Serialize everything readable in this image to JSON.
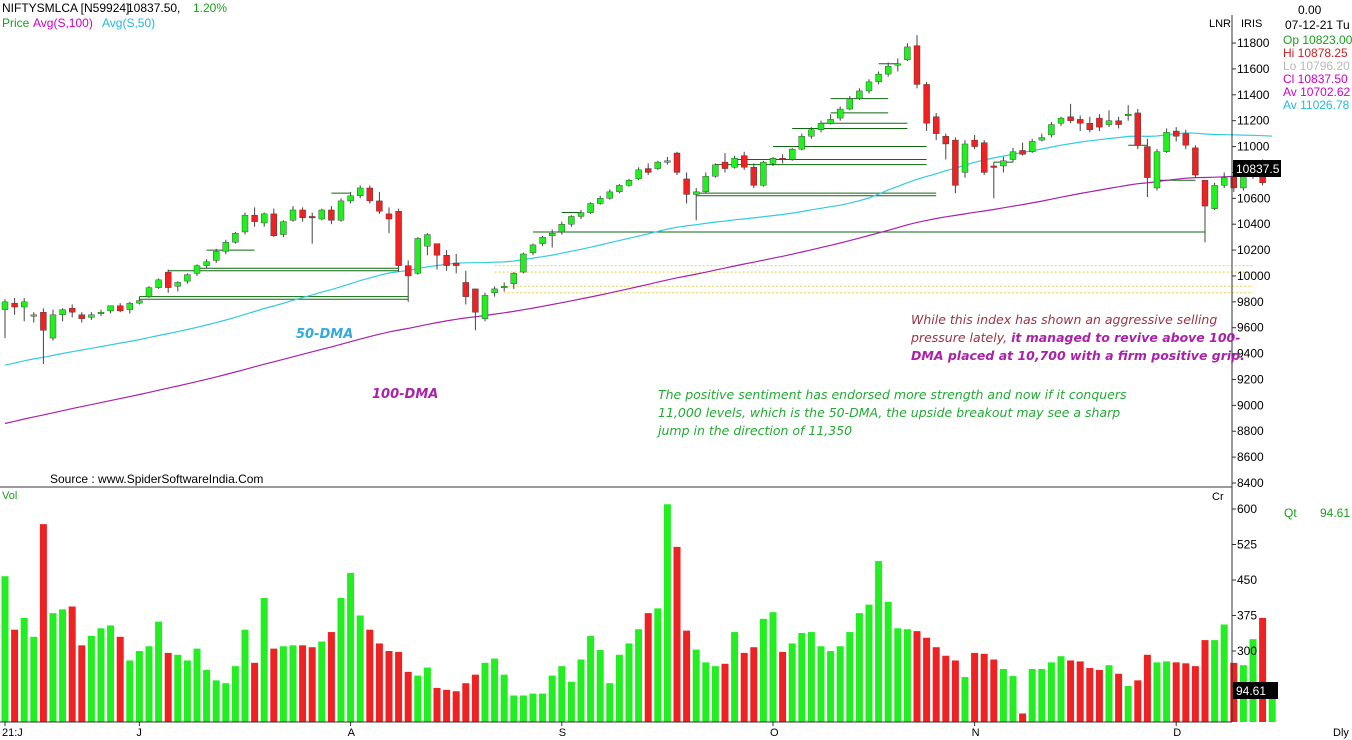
{
  "header": {
    "symbol": "NIFTYSMLCA [N59924]",
    "last": "10837.50,",
    "change": "1.20%",
    "legend": [
      "Price",
      "Avg(S,100)",
      "Avg(S,50)"
    ]
  },
  "info_panel": {
    "lnr": "LNR",
    "iris": "IRIS",
    "top_value": "0.00",
    "date": "07-12-21 Tu",
    "rows": [
      {
        "label": "Op",
        "value": "10823.00",
        "color": "#1aa01a"
      },
      {
        "label": "Hi",
        "value": "10878.25",
        "color": "#cc2222"
      },
      {
        "label": "Lo",
        "value": "10796.20",
        "color": "#b8b8b8"
      },
      {
        "label": "Cl",
        "value": "10837.50",
        "color": "#cc00cc"
      },
      {
        "label": "Av",
        "value": "10702.62",
        "color": "#cc00cc"
      },
      {
        "label": "Av",
        "value": "11026.78",
        "color": "#22bbdd"
      }
    ],
    "price_tag": "10837.5",
    "vol_tag": "94.61",
    "qt_label": "Qt",
    "qt_value": "94.61",
    "cr_label": "Cr",
    "period": "Dly"
  },
  "source": "Source : www.SpiderSoftwareIndia.Com",
  "annotations": {
    "red_note": {
      "line1": "While this index has shown an aggressive selling",
      "line2a": "pressure lately, ",
      "line2b": "it managed to revive above 100-",
      "line3": "DMA placed at 10,700 with a firm positive grip."
    },
    "green_note": {
      "line1": "The positive  sentiment has endorsed more strength and now if it conquers",
      "line2": "11,000 levels, which is the 50-DMA, the upside breakout may see a sharp",
      "line3": "jump in the direction of 11,350"
    },
    "ma50_label": "50-DMA",
    "ma100_label": "100-DMA"
  },
  "chart_data": {
    "type": "candlestick",
    "colors": {
      "up": "#22ee22",
      "down": "#ee2222",
      "ma50": "#33ccdd",
      "ma100": "#aa22aa"
    },
    "price_axis": {
      "min": 8400,
      "max": 11800,
      "ticks": [
        8400,
        8600,
        8800,
        9000,
        9200,
        9400,
        9600,
        9800,
        10000,
        10200,
        10400,
        10600,
        10800,
        11000,
        11200,
        11400,
        11600,
        11800
      ]
    },
    "volume_axis": {
      "min": 150,
      "max": 600,
      "ticks": [
        225,
        300,
        375,
        450,
        525,
        600
      ],
      "label": "Vol"
    },
    "x_labels": [
      {
        "label": "21:J",
        "index": 0
      },
      {
        "label": "J",
        "index": 14
      },
      {
        "label": "A",
        "index": 36
      },
      {
        "label": "S",
        "index": 58
      },
      {
        "label": "O",
        "index": 80
      },
      {
        "label": "N",
        "index": 101
      },
      {
        "label": "D",
        "index": 122
      }
    ],
    "candles": [
      {
        "o": 9740,
        "h": 9820,
        "l": 9520,
        "c": 9800
      },
      {
        "o": 9790,
        "h": 9830,
        "l": 9700,
        "c": 9760
      },
      {
        "o": 9760,
        "h": 9830,
        "l": 9650,
        "c": 9800
      },
      {
        "o": 9700,
        "h": 9720,
        "l": 9640,
        "c": 9700
      },
      {
        "o": 9720,
        "h": 9750,
        "l": 9320,
        "c": 9580
      },
      {
        "o": 9520,
        "h": 9740,
        "l": 9500,
        "c": 9700
      },
      {
        "o": 9700,
        "h": 9750,
        "l": 9650,
        "c": 9740
      },
      {
        "o": 9750,
        "h": 9780,
        "l": 9680,
        "c": 9720
      },
      {
        "o": 9700,
        "h": 9720,
        "l": 9640,
        "c": 9670
      },
      {
        "o": 9680,
        "h": 9720,
        "l": 9660,
        "c": 9700
      },
      {
        "o": 9710,
        "h": 9740,
        "l": 9690,
        "c": 9720
      },
      {
        "o": 9730,
        "h": 9770,
        "l": 9710,
        "c": 9770
      },
      {
        "o": 9770,
        "h": 9790,
        "l": 9720,
        "c": 9730
      },
      {
        "o": 9740,
        "h": 9800,
        "l": 9710,
        "c": 9790
      },
      {
        "o": 9790,
        "h": 9840,
        "l": 9780,
        "c": 9810
      },
      {
        "o": 9840,
        "h": 9920,
        "l": 9830,
        "c": 9910
      },
      {
        "o": 9910,
        "h": 9980,
        "l": 9900,
        "c": 9970
      },
      {
        "o": 10030,
        "h": 10050,
        "l": 9870,
        "c": 9910
      },
      {
        "o": 9920,
        "h": 9960,
        "l": 9880,
        "c": 9950
      },
      {
        "o": 9960,
        "h": 10020,
        "l": 9940,
        "c": 10010
      },
      {
        "o": 10020,
        "h": 10090,
        "l": 10000,
        "c": 10080
      },
      {
        "o": 10080,
        "h": 10130,
        "l": 10060,
        "c": 10110
      },
      {
        "o": 10120,
        "h": 10210,
        "l": 10100,
        "c": 10190
      },
      {
        "o": 10190,
        "h": 10280,
        "l": 10170,
        "c": 10260
      },
      {
        "o": 10260,
        "h": 10340,
        "l": 10250,
        "c": 10330
      },
      {
        "o": 10340,
        "h": 10490,
        "l": 10320,
        "c": 10470
      },
      {
        "o": 10470,
        "h": 10530,
        "l": 10380,
        "c": 10420
      },
      {
        "o": 10410,
        "h": 10490,
        "l": 10380,
        "c": 10480
      },
      {
        "o": 10480,
        "h": 10520,
        "l": 10300,
        "c": 10310
      },
      {
        "o": 10320,
        "h": 10430,
        "l": 10300,
        "c": 10420
      },
      {
        "o": 10430,
        "h": 10540,
        "l": 10420,
        "c": 10510
      },
      {
        "o": 10510,
        "h": 10530,
        "l": 10420,
        "c": 10450
      },
      {
        "o": 10460,
        "h": 10490,
        "l": 10250,
        "c": 10450
      },
      {
        "o": 10440,
        "h": 10520,
        "l": 10430,
        "c": 10510
      },
      {
        "o": 10510,
        "h": 10540,
        "l": 10400,
        "c": 10430
      },
      {
        "o": 10430,
        "h": 10600,
        "l": 10420,
        "c": 10580
      },
      {
        "o": 10580,
        "h": 10650,
        "l": 10560,
        "c": 10620
      },
      {
        "o": 10620,
        "h": 10700,
        "l": 10600,
        "c": 10680
      },
      {
        "o": 10680,
        "h": 10700,
        "l": 10560,
        "c": 10580
      },
      {
        "o": 10580,
        "h": 10650,
        "l": 10480,
        "c": 10500
      },
      {
        "o": 10480,
        "h": 10530,
        "l": 10330,
        "c": 10440
      },
      {
        "o": 10500,
        "h": 10520,
        "l": 10030,
        "c": 10080
      },
      {
        "o": 10080,
        "h": 10120,
        "l": 9800,
        "c": 10000
      },
      {
        "o": 10020,
        "h": 10300,
        "l": 10010,
        "c": 10290
      },
      {
        "o": 10230,
        "h": 10330,
        "l": 10160,
        "c": 10320
      },
      {
        "o": 10250,
        "h": 10250,
        "l": 10050,
        "c": 10160
      },
      {
        "o": 10160,
        "h": 10200,
        "l": 10040,
        "c": 10080
      },
      {
        "o": 10100,
        "h": 10170,
        "l": 10020,
        "c": 10080
      },
      {
        "o": 9950,
        "h": 10040,
        "l": 9780,
        "c": 9840
      },
      {
        "o": 9900,
        "h": 9900,
        "l": 9580,
        "c": 9720
      },
      {
        "o": 9670,
        "h": 9870,
        "l": 9650,
        "c": 9850
      },
      {
        "o": 9870,
        "h": 9920,
        "l": 9840,
        "c": 9900
      },
      {
        "o": 9910,
        "h": 9950,
        "l": 9880,
        "c": 9920
      },
      {
        "o": 9940,
        "h": 10030,
        "l": 9900,
        "c": 10020
      },
      {
        "o": 10030,
        "h": 10180,
        "l": 10020,
        "c": 10170
      },
      {
        "o": 10180,
        "h": 10250,
        "l": 10160,
        "c": 10240
      },
      {
        "o": 10250,
        "h": 10310,
        "l": 10230,
        "c": 10300
      },
      {
        "o": 10310,
        "h": 10360,
        "l": 10220,
        "c": 10330
      },
      {
        "o": 10340,
        "h": 10420,
        "l": 10320,
        "c": 10400
      },
      {
        "o": 10400,
        "h": 10470,
        "l": 10380,
        "c": 10460
      },
      {
        "o": 10460,
        "h": 10510,
        "l": 10440,
        "c": 10490
      },
      {
        "o": 10490,
        "h": 10570,
        "l": 10480,
        "c": 10560
      },
      {
        "o": 10560,
        "h": 10620,
        "l": 10550,
        "c": 10600
      },
      {
        "o": 10600,
        "h": 10670,
        "l": 10590,
        "c": 10650
      },
      {
        "o": 10650,
        "h": 10710,
        "l": 10640,
        "c": 10700
      },
      {
        "o": 10700,
        "h": 10750,
        "l": 10690,
        "c": 10740
      },
      {
        "o": 10750,
        "h": 10840,
        "l": 10740,
        "c": 10820
      },
      {
        "o": 10830,
        "h": 10870,
        "l": 10780,
        "c": 10800
      },
      {
        "o": 10830,
        "h": 10890,
        "l": 10820,
        "c": 10880
      },
      {
        "o": 10880,
        "h": 10920,
        "l": 10860,
        "c": 10890
      },
      {
        "o": 10950,
        "h": 10960,
        "l": 10780,
        "c": 10800
      },
      {
        "o": 10750,
        "h": 10800,
        "l": 10560,
        "c": 10630
      },
      {
        "o": 10630,
        "h": 10680,
        "l": 10430,
        "c": 10650
      },
      {
        "o": 10650,
        "h": 10800,
        "l": 10640,
        "c": 10770
      },
      {
        "o": 10770,
        "h": 10870,
        "l": 10760,
        "c": 10860
      },
      {
        "o": 10880,
        "h": 10950,
        "l": 10800,
        "c": 10830
      },
      {
        "o": 10840,
        "h": 10930,
        "l": 10830,
        "c": 10910
      },
      {
        "o": 10930,
        "h": 10960,
        "l": 10820,
        "c": 10840
      },
      {
        "o": 10840,
        "h": 10870,
        "l": 10680,
        "c": 10700
      },
      {
        "o": 10700,
        "h": 10890,
        "l": 10690,
        "c": 10880
      },
      {
        "o": 10870,
        "h": 10920,
        "l": 10850,
        "c": 10910
      },
      {
        "o": 10910,
        "h": 10940,
        "l": 10870,
        "c": 10900
      },
      {
        "o": 10900,
        "h": 10990,
        "l": 10890,
        "c": 10980
      },
      {
        "o": 10980,
        "h": 11100,
        "l": 10970,
        "c": 11080
      },
      {
        "o": 11080,
        "h": 11150,
        "l": 11060,
        "c": 11130
      },
      {
        "o": 11130,
        "h": 11200,
        "l": 11110,
        "c": 11180
      },
      {
        "o": 11180,
        "h": 11250,
        "l": 11170,
        "c": 11210
      },
      {
        "o": 11220,
        "h": 11310,
        "l": 11200,
        "c": 11290
      },
      {
        "o": 11290,
        "h": 11390,
        "l": 11280,
        "c": 11370
      },
      {
        "o": 11370,
        "h": 11450,
        "l": 11360,
        "c": 11430
      },
      {
        "o": 11430,
        "h": 11520,
        "l": 11410,
        "c": 11500
      },
      {
        "o": 11500,
        "h": 11580,
        "l": 11480,
        "c": 11560
      },
      {
        "o": 11560,
        "h": 11650,
        "l": 11540,
        "c": 11620
      },
      {
        "o": 11630,
        "h": 11680,
        "l": 11580,
        "c": 11640
      },
      {
        "o": 11670,
        "h": 11800,
        "l": 11660,
        "c": 11770
      },
      {
        "o": 11780,
        "h": 11860,
        "l": 11450,
        "c": 11480
      },
      {
        "o": 11480,
        "h": 11500,
        "l": 11120,
        "c": 11180
      },
      {
        "o": 11230,
        "h": 11260,
        "l": 11050,
        "c": 11100
      },
      {
        "o": 11080,
        "h": 11100,
        "l": 10900,
        "c": 11020
      },
      {
        "o": 11050,
        "h": 11070,
        "l": 10640,
        "c": 10700
      },
      {
        "o": 10800,
        "h": 11050,
        "l": 10760,
        "c": 11020
      },
      {
        "o": 11050,
        "h": 11090,
        "l": 10980,
        "c": 11000
      },
      {
        "o": 11030,
        "h": 11050,
        "l": 10780,
        "c": 10800
      },
      {
        "o": 10850,
        "h": 10880,
        "l": 10600,
        "c": 10840
      },
      {
        "o": 10850,
        "h": 10920,
        "l": 10800,
        "c": 10890
      },
      {
        "o": 10900,
        "h": 10990,
        "l": 10880,
        "c": 10960
      },
      {
        "o": 10970,
        "h": 11030,
        "l": 10930,
        "c": 10940
      },
      {
        "o": 10960,
        "h": 11060,
        "l": 10950,
        "c": 11040
      },
      {
        "o": 11050,
        "h": 11100,
        "l": 11040,
        "c": 11070
      },
      {
        "o": 11090,
        "h": 11190,
        "l": 11070,
        "c": 11170
      },
      {
        "o": 11180,
        "h": 11230,
        "l": 11160,
        "c": 11220
      },
      {
        "o": 11230,
        "h": 11330,
        "l": 11180,
        "c": 11200
      },
      {
        "o": 11210,
        "h": 11240,
        "l": 11120,
        "c": 11180
      },
      {
        "o": 11180,
        "h": 11230,
        "l": 11110,
        "c": 11130
      },
      {
        "o": 11220,
        "h": 11250,
        "l": 11120,
        "c": 11150
      },
      {
        "o": 11170,
        "h": 11280,
        "l": 11150,
        "c": 11200
      },
      {
        "o": 11200,
        "h": 11230,
        "l": 11140,
        "c": 11170
      },
      {
        "o": 11250,
        "h": 11320,
        "l": 11200,
        "c": 11250
      },
      {
        "o": 11260,
        "h": 11290,
        "l": 10980,
        "c": 11010
      },
      {
        "o": 11000,
        "h": 11060,
        "l": 10610,
        "c": 10760
      },
      {
        "o": 10680,
        "h": 10980,
        "l": 10660,
        "c": 10960
      },
      {
        "o": 10960,
        "h": 11140,
        "l": 10950,
        "c": 11110
      },
      {
        "o": 11120,
        "h": 11150,
        "l": 11040,
        "c": 11080
      },
      {
        "o": 11100,
        "h": 11130,
        "l": 10980,
        "c": 11010
      },
      {
        "o": 10990,
        "h": 11010,
        "l": 10760,
        "c": 10780
      },
      {
        "o": 10740,
        "h": 10740,
        "l": 10260,
        "c": 10540
      },
      {
        "o": 10520,
        "h": 10720,
        "l": 10510,
        "c": 10700
      },
      {
        "o": 10700,
        "h": 10800,
        "l": 10680,
        "c": 10760
      },
      {
        "o": 10770,
        "h": 10810,
        "l": 10650,
        "c": 10680
      },
      {
        "o": 10680,
        "h": 10790,
        "l": 10660,
        "c": 10770
      },
      {
        "o": 10770,
        "h": 10890,
        "l": 10750,
        "c": 10840
      },
      {
        "o": 10880,
        "h": 10900,
        "l": 10700,
        "c": 10720
      },
      {
        "o": 10823,
        "h": 10878.25,
        "l": 10796.2,
        "c": 10837.5
      }
    ],
    "volume": [
      458,
      345,
      370,
      330,
      568,
      380,
      388,
      394,
      312,
      332,
      348,
      354,
      330,
      280,
      300,
      310,
      362,
      296,
      292,
      280,
      305,
      260,
      238,
      232,
      268,
      345,
      275,
      412,
      305,
      310,
      312,
      312,
      308,
      320,
      340,
      412,
      465,
      375,
      345,
      316,
      300,
      298,
      256,
      248,
      265,
      222,
      218,
      215,
      232,
      250,
      275,
      284,
      250,
      206,
      206,
      210,
      210,
      248,
      268,
      235,
      282,
      332,
      302,
      232,
      292,
      316,
      346,
      380,
      390,
      610,
      520,
      343,
      303,
      276,
      268,
      273,
      340,
      296,
      308,
      368,
      382,
      298,
      316,
      338,
      340,
      310,
      300,
      310,
      340,
      380,
      398,
      490,
      404,
      348,
      346,
      342,
      328,
      308,
      290,
      280,
      245,
      296,
      294,
      282,
      262,
      247,
      168,
      262,
      262,
      276,
      289,
      280,
      278,
      264,
      260,
      270,
      252,
      226,
      238,
      292,
      276,
      278,
      276,
      274,
      268,
      323,
      323,
      356,
      275,
      270,
      325,
      370,
      225
    ]
  },
  "levels": [
    {
      "from": 21,
      "to": 26,
      "y": 10200
    },
    {
      "from": 20,
      "to": 41,
      "y": 10060
    },
    {
      "from": 17,
      "to": 41,
      "y": 10040
    },
    {
      "from": 14,
      "to": 42,
      "y": 9840
    },
    {
      "from": 14,
      "to": 42,
      "y": 9820
    },
    {
      "from": 34,
      "to": 36,
      "y": 10640
    },
    {
      "from": 55,
      "to": 125,
      "y": 10340
    },
    {
      "from": 58,
      "to": 60,
      "y": 10490
    },
    {
      "from": 72,
      "to": 97,
      "y": 10640
    },
    {
      "from": 72,
      "to": 97,
      "y": 10620
    },
    {
      "from": 74,
      "to": 96,
      "y": 10860
    },
    {
      "from": 76,
      "to": 96,
      "y": 10900
    },
    {
      "from": 80,
      "to": 96,
      "y": 11000
    },
    {
      "from": 82,
      "to": 94,
      "y": 11140
    },
    {
      "from": 85,
      "to": 94,
      "y": 11180
    },
    {
      "from": 86,
      "to": 92,
      "y": 11370
    },
    {
      "from": 86,
      "to": 92,
      "y": 11260
    },
    {
      "from": 91,
      "to": 93,
      "y": 11640
    },
    {
      "from": 103,
      "to": 105,
      "y": 10880
    },
    {
      "from": 117,
      "to": 119,
      "y": 11010
    },
    {
      "from": 120,
      "to": 122,
      "y": 10740
    },
    {
      "from": 122,
      "to": 124,
      "y": 10740
    }
  ],
  "bands": [
    {
      "from": 51,
      "to": 130,
      "y": 10030
    },
    {
      "from": 51,
      "to": 130,
      "y": 10080
    },
    {
      "from": 52,
      "to": 130,
      "y": 9870
    },
    {
      "from": 52,
      "to": 130,
      "y": 9920
    }
  ]
}
